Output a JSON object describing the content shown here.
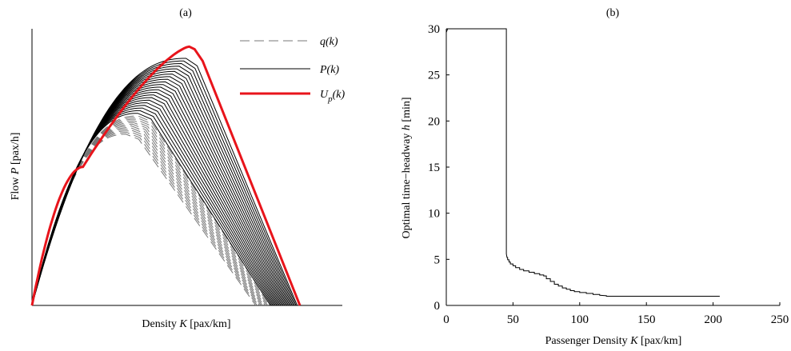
{
  "chart_data": [
    {
      "panel_label": "(a)",
      "type": "line",
      "xlabel_parts": [
        "Density ",
        "K",
        " [pax/km]"
      ],
      "ylabel_parts": [
        "Flow ",
        "P",
        " [pax/h]"
      ],
      "axis_ticks": "none",
      "legend": {
        "position": "top-right",
        "entries": [
          {
            "label": "q(k)",
            "style": "dashed",
            "color": "#777777"
          },
          {
            "label": "P(k)",
            "style": "solid",
            "color": "#000000"
          },
          {
            "label_main": "U",
            "label_sub": "p",
            "label_rest": "(k)",
            "style": "solid-thick",
            "color": "#e8141b"
          }
        ]
      },
      "x_range": [
        0,
        1
      ],
      "y_range": [
        0,
        1
      ],
      "curve_params": {
        "q_family": {
          "count": 12,
          "peak_x_from": 0.35,
          "peak_x_to": 0.395,
          "peak_y_from": 0.655,
          "peak_y_to": 0.725,
          "end_x_from": 0.835,
          "end_x_to": 0.89
        },
        "P_family": {
          "count": 22,
          "peak_x_from": 0.395,
          "peak_x_to": 0.575,
          "peak_y_from": 0.735,
          "peak_y_to": 0.945,
          "end_x_from": 0.89,
          "end_x_to": 0.99
        },
        "upper_bound": {
          "knee": [
            0.19,
            0.53
          ],
          "peak": [
            0.587,
            0.99
          ],
          "end": [
            1.0,
            0.0
          ]
        }
      }
    },
    {
      "panel_label": "(b)",
      "type": "line",
      "xlabel_parts": [
        "Passenger Density ",
        "K",
        " [pax/km]"
      ],
      "ylabel_parts": [
        "Optimal time−headway ",
        "h",
        " [min]"
      ],
      "xlim": [
        0,
        250
      ],
      "ylim": [
        0,
        30
      ],
      "xticks": [
        0,
        50,
        100,
        150,
        200,
        250
      ],
      "yticks": [
        0,
        5,
        10,
        15,
        20,
        25,
        30
      ],
      "x_tick_labels": [
        "0",
        "50",
        "100",
        "150",
        "200",
        "250"
      ],
      "y_tick_labels": [
        "0",
        "5",
        "10",
        "15",
        "20",
        "25",
        "30"
      ],
      "series": [
        {
          "color": "#000000",
          "x": [
            0,
            1,
            45,
            45,
            45.5,
            46,
            47,
            48,
            50,
            52,
            55,
            58,
            62,
            66,
            70,
            73,
            75,
            78,
            81,
            84,
            87,
            90,
            93,
            96,
            100,
            105,
            110,
            115,
            120,
            120,
            150,
            205
          ],
          "y": [
            29.6,
            30,
            30,
            5.6,
            5.2,
            4.95,
            4.7,
            4.5,
            4.3,
            4.1,
            3.9,
            3.75,
            3.6,
            3.45,
            3.3,
            3.2,
            2.9,
            2.6,
            2.3,
            2.1,
            1.9,
            1.75,
            1.6,
            1.5,
            1.4,
            1.3,
            1.2,
            1.1,
            1.05,
            1.0,
            1.0,
            1.0
          ],
          "step": true
        }
      ]
    }
  ]
}
